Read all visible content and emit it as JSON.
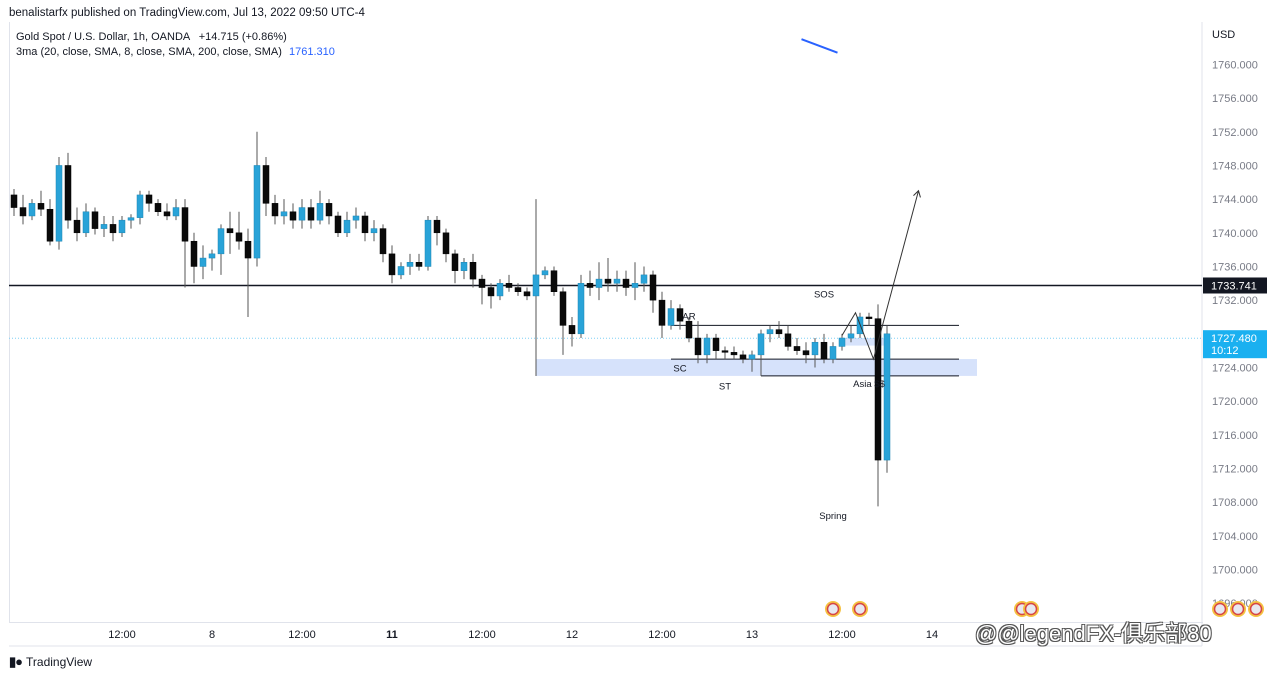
{
  "header": {
    "publish_line": "benalistarfx published on TradingView.com, Jul 13, 2022 09:50 UTC-4"
  },
  "legend": {
    "symbol": "Gold Spot / U.S. Dollar, 1h, OANDA",
    "change": "+14.715 (+0.86%)",
    "ma_label": "3ma (20, close, SMA, 8, close, SMA, 200, close, SMA)",
    "ma_value": "1761.310"
  },
  "currency": "USD",
  "footer": {
    "brand": "TradingView"
  },
  "watermark": "@@legendFX-俱乐部80",
  "colors": {
    "up": "#29a3d8",
    "down": "#0a0a0a",
    "zone": "#d6e2fb",
    "ma": "#2962ff",
    "current": "#1ab0f0"
  },
  "chart_data": {
    "type": "candlestick",
    "ylim": [
      1694.0,
      1763.5
    ],
    "y_ticks": [
      "1760.000",
      "1756.000",
      "1752.000",
      "1748.000",
      "1744.000",
      "1740.000",
      "1736.000",
      "1732.000",
      "1728.000",
      "1724.000",
      "1720.000",
      "1716.000",
      "1712.000",
      "1708.000",
      "1704.000",
      "1700.000",
      "1696.000"
    ],
    "x_ticks": [
      {
        "label": "12:00",
        "i": 12,
        "bold": false
      },
      {
        "label": "8",
        "i": 22,
        "bold": false
      },
      {
        "label": "12:00",
        "i": 32,
        "bold": false
      },
      {
        "label": "11",
        "i": 42,
        "bold": true
      },
      {
        "label": "12:00",
        "i": 52,
        "bold": false
      },
      {
        "label": "12",
        "i": 62,
        "bold": false
      },
      {
        "label": "12:00",
        "i": 72,
        "bold": false
      },
      {
        "label": "13",
        "i": 82,
        "bold": false
      },
      {
        "label": "12:00",
        "i": 92,
        "bold": false
      },
      {
        "label": "14",
        "i": 102,
        "bold": false
      }
    ],
    "price_labels": [
      {
        "value": "1733.741",
        "style": "black"
      },
      {
        "value": "1727.480",
        "sub": "10:12",
        "style": "blue"
      }
    ],
    "candles": [
      [
        1744.5,
        1743.0,
        1745.2,
        1742.0
      ],
      [
        1743.0,
        1742.0,
        1744.5,
        1741.0
      ],
      [
        1742.0,
        1743.5,
        1744.0,
        1741.5
      ],
      [
        1743.5,
        1742.8,
        1745.0,
        1742.0
      ],
      [
        1742.8,
        1739.0,
        1744.0,
        1738.5
      ],
      [
        1739.0,
        1748.0,
        1749.0,
        1738.0
      ],
      [
        1748.0,
        1741.5,
        1749.5,
        1740.5
      ],
      [
        1741.5,
        1740.0,
        1743.0,
        1739.0
      ],
      [
        1740.0,
        1742.5,
        1743.5,
        1739.5
      ],
      [
        1742.5,
        1740.5,
        1743.0,
        1739.8
      ],
      [
        1740.5,
        1741.0,
        1742.0,
        1739.5
      ],
      [
        1741.0,
        1740.0,
        1742.0,
        1739.0
      ],
      [
        1740.0,
        1741.5,
        1742.0,
        1739.5
      ],
      [
        1741.5,
        1741.8,
        1742.2,
        1740.5
      ],
      [
        1741.8,
        1744.5,
        1745.0,
        1741.0
      ],
      [
        1744.5,
        1743.5,
        1745.0,
        1742.5
      ],
      [
        1743.5,
        1742.5,
        1744.0,
        1742.0
      ],
      [
        1742.5,
        1742.0,
        1743.5,
        1741.5
      ],
      [
        1742.0,
        1743.0,
        1744.0,
        1741.5
      ],
      [
        1743.0,
        1739.0,
        1744.0,
        1733.5
      ],
      [
        1739.0,
        1736.0,
        1740.0,
        1734.0
      ],
      [
        1736.0,
        1737.0,
        1738.5,
        1734.5
      ],
      [
        1737.0,
        1737.5,
        1738.0,
        1735.5
      ],
      [
        1737.5,
        1740.5,
        1741.0,
        1735.0
      ],
      [
        1740.5,
        1740.0,
        1742.5,
        1737.5
      ],
      [
        1740.0,
        1739.0,
        1742.5,
        1738.0
      ],
      [
        1739.0,
        1737.0,
        1740.5,
        1730.0
      ],
      [
        1737.0,
        1748.0,
        1752.0,
        1736.0
      ],
      [
        1748.0,
        1743.5,
        1749.0,
        1742.0
      ],
      [
        1743.5,
        1742.0,
        1744.5,
        1741.0
      ],
      [
        1742.0,
        1742.5,
        1744.0,
        1741.0
      ],
      [
        1742.5,
        1741.5,
        1743.5,
        1740.5
      ],
      [
        1741.5,
        1743.0,
        1744.0,
        1740.5
      ],
      [
        1743.0,
        1741.5,
        1744.0,
        1740.5
      ],
      [
        1741.5,
        1743.5,
        1745.0,
        1741.0
      ],
      [
        1743.5,
        1742.0,
        1744.0,
        1741.0
      ],
      [
        1742.0,
        1740.0,
        1742.5,
        1739.5
      ],
      [
        1740.0,
        1741.5,
        1742.5,
        1739.5
      ],
      [
        1741.5,
        1742.0,
        1743.0,
        1740.5
      ],
      [
        1742.0,
        1740.0,
        1742.5,
        1739.0
      ],
      [
        1740.0,
        1740.5,
        1741.5,
        1739.0
      ],
      [
        1740.5,
        1737.5,
        1741.0,
        1736.5
      ],
      [
        1737.5,
        1735.0,
        1738.5,
        1734.0
      ],
      [
        1735.0,
        1736.0,
        1736.5,
        1734.5
      ],
      [
        1736.0,
        1736.5,
        1737.5,
        1735.0
      ],
      [
        1736.5,
        1736.0,
        1737.5,
        1735.5
      ],
      [
        1736.0,
        1741.5,
        1742.0,
        1735.5
      ],
      [
        1741.5,
        1740.0,
        1742.0,
        1738.5
      ],
      [
        1740.0,
        1737.5,
        1740.5,
        1736.5
      ],
      [
        1737.5,
        1735.5,
        1738.0,
        1734.0
      ],
      [
        1735.5,
        1736.5,
        1737.0,
        1734.5
      ],
      [
        1736.5,
        1734.5,
        1737.5,
        1733.5
      ],
      [
        1734.5,
        1733.5,
        1735.0,
        1731.5
      ],
      [
        1733.5,
        1732.5,
        1734.0,
        1731.0
      ],
      [
        1732.5,
        1734.0,
        1734.5,
        1732.0
      ],
      [
        1734.0,
        1733.5,
        1735.0,
        1733.0
      ],
      [
        1733.5,
        1733.0,
        1734.0,
        1732.5
      ],
      [
        1733.0,
        1732.5,
        1733.5,
        1732.0
      ],
      [
        1732.5,
        1735.0,
        1737.5,
        1723.0
      ],
      [
        1735.0,
        1735.5,
        1736.0,
        1734.5
      ],
      [
        1735.5,
        1733.0,
        1736.0,
        1732.5
      ],
      [
        1733.0,
        1729.0,
        1733.5,
        1725.5
      ],
      [
        1729.0,
        1728.0,
        1730.0,
        1726.5
      ],
      [
        1728.0,
        1734.0,
        1735.0,
        1727.5
      ],
      [
        1734.0,
        1733.5,
        1735.5,
        1732.5
      ],
      [
        1733.5,
        1734.5,
        1736.5,
        1732.0
      ],
      [
        1734.5,
        1734.0,
        1737.0,
        1733.0
      ],
      [
        1734.0,
        1734.5,
        1735.5,
        1733.0
      ],
      [
        1734.5,
        1733.5,
        1735.5,
        1732.5
      ],
      [
        1733.5,
        1734.0,
        1736.5,
        1732.0
      ],
      [
        1734.0,
        1735.0,
        1736.0,
        1733.0
      ],
      [
        1735.0,
        1732.0,
        1735.5,
        1730.5
      ],
      [
        1732.0,
        1729.0,
        1733.0,
        1727.5
      ],
      [
        1729.0,
        1731.0,
        1732.0,
        1728.5
      ],
      [
        1731.0,
        1729.5,
        1731.5,
        1728.5
      ],
      [
        1729.5,
        1727.5,
        1730.0,
        1727.0
      ],
      [
        1727.5,
        1725.5,
        1729.5,
        1724.5
      ],
      [
        1725.5,
        1727.5,
        1728.0,
        1724.5
      ],
      [
        1727.5,
        1726.0,
        1728.0,
        1725.0
      ],
      [
        1726.0,
        1725.8,
        1726.5,
        1725.0
      ],
      [
        1725.8,
        1725.5,
        1726.5,
        1725.0
      ],
      [
        1725.5,
        1725.0,
        1726.0,
        1724.5
      ],
      [
        1725.0,
        1725.5,
        1726.0,
        1723.5
      ],
      [
        1725.5,
        1728.0,
        1728.5,
        1725.0
      ],
      [
        1728.0,
        1728.5,
        1729.0,
        1727.0
      ],
      [
        1728.5,
        1728.0,
        1729.5,
        1727.5
      ],
      [
        1728.0,
        1726.5,
        1729.0,
        1726.0
      ],
      [
        1726.5,
        1726.0,
        1727.5,
        1725.5
      ],
      [
        1726.0,
        1725.5,
        1727.0,
        1724.5
      ],
      [
        1725.5,
        1727.0,
        1727.5,
        1724.0
      ],
      [
        1727.0,
        1725.0,
        1728.0,
        1724.5
      ],
      [
        1725.0,
        1726.5,
        1727.0,
        1724.5
      ],
      [
        1726.5,
        1727.5,
        1728.0,
        1726.0
      ],
      [
        1727.5,
        1728.0,
        1729.0,
        1727.0
      ],
      [
        1728.0,
        1730.0,
        1730.5,
        1727.5
      ],
      [
        1730.0,
        1729.8,
        1730.5,
        1729.0
      ],
      [
        1729.8,
        1713.0,
        1731.5,
        1707.5
      ],
      [
        1713.0,
        1728.0,
        1729.0,
        1711.5
      ]
    ],
    "levels": [
      {
        "value": 1733.741,
        "color": "#131722"
      },
      {
        "value": 1727.48,
        "color": "#7fd0f5",
        "dotted": true
      }
    ],
    "ma_segment": [
      {
        "i": 87.5,
        "y": 1763.0
      },
      {
        "i": 91.5,
        "y": 1761.4
      }
    ],
    "zones": [
      {
        "i1": 58,
        "i2": 107,
        "y1": 1725.0,
        "y2": 1723.0
      },
      {
        "i1": 92,
        "i2": 97,
        "y1": 1727.5,
        "y2": 1726.6
      }
    ],
    "box_lines": [
      {
        "i1": 73,
        "i2": 105,
        "y": 1729.0
      },
      {
        "i1": 73,
        "i2": 105,
        "y": 1725.0
      },
      {
        "i1": 83,
        "i2": 105,
        "y": 1723.0
      }
    ],
    "vlines": [
      {
        "i": 58,
        "y1": 1744.0,
        "y2": 1723.0
      },
      {
        "i": 83,
        "y1": 1725.0,
        "y2": 1723.0
      }
    ],
    "projection": [
      {
        "i": 92,
        "y": 1727.8
      },
      {
        "i": 93.5,
        "y": 1730.5
      },
      {
        "i": 95.5,
        "y": 1725.0
      },
      {
        "i": 97.5,
        "y": 1733.0
      },
      {
        "i": 100.5,
        "y": 1745.0
      }
    ],
    "annotations": [
      {
        "text": "AR",
        "i": 75,
        "y": 1729.7
      },
      {
        "text": "SC",
        "i": 74,
        "y": 1723.5
      },
      {
        "text": "ST",
        "i": 79,
        "y": 1721.4
      },
      {
        "text": "SOS",
        "i": 90,
        "y": 1732.3
      },
      {
        "text": "Asia $$",
        "i": 95,
        "y": 1721.7
      },
      {
        "text": "Spring",
        "i": 91,
        "y": 1706.0
      }
    ],
    "events": [
      {
        "i": 91
      },
      {
        "i": 94
      },
      {
        "i": 112
      },
      {
        "i": 113
      },
      {
        "i": 134
      },
      {
        "i": 136
      },
      {
        "i": 138
      }
    ]
  }
}
